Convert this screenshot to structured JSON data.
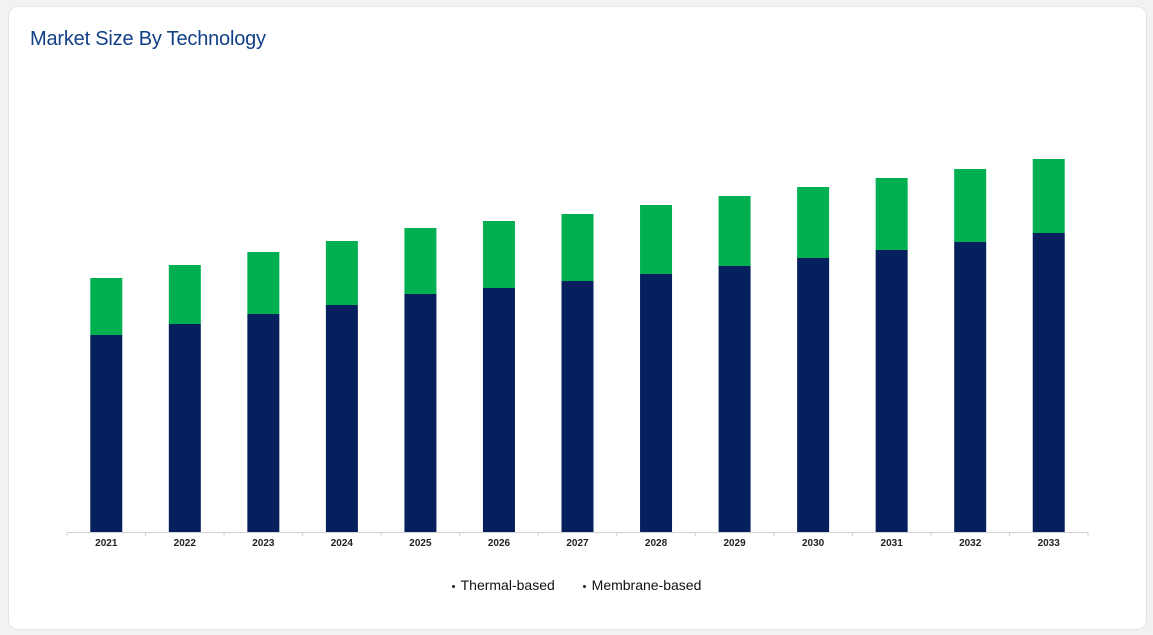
{
  "chart_data": {
    "type": "bar",
    "stacked": true,
    "title": "Market Size By Technology",
    "xlabel": "",
    "ylabel": "",
    "categories": [
      "2021",
      "2022",
      "2023",
      "2024",
      "2025",
      "2026",
      "2027",
      "2028",
      "2029",
      "2030",
      "2031",
      "2032",
      "2033"
    ],
    "series": [
      {
        "name": "Thermal-based",
        "color": "#06205e",
        "values": [
          197,
          208,
          218,
          227,
          238,
          244,
          251,
          258,
          266,
          274,
          282,
          290,
          299
        ]
      },
      {
        "name": "Membrane-based",
        "color": "#00b050",
        "values": [
          57,
          59,
          62,
          64,
          66,
          67,
          67,
          69,
          70,
          71,
          72,
          73,
          74
        ]
      }
    ],
    "ylim": [
      0,
      400
    ],
    "y_axis_shown": false,
    "grid": false,
    "legend_position": "bottom"
  }
}
